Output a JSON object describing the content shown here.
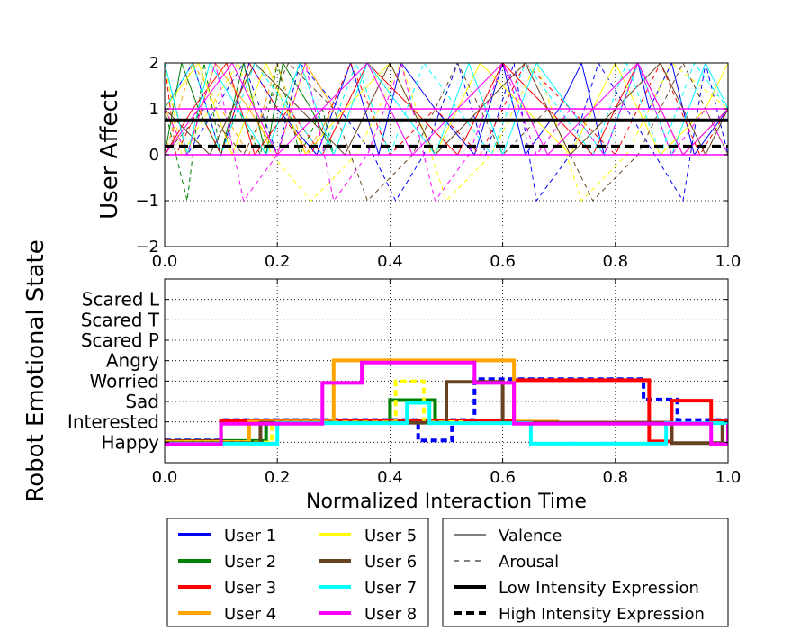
{
  "figure": {
    "top_ylabel": "User Affect",
    "bottom_ylabel": "Robot Emotional State",
    "xlabel": "Normalized Interaction Time"
  },
  "colors": {
    "User 1": "#0000ff",
    "User 2": "#008000",
    "User 3": "#ff0000",
    "User 4": "#ffa500",
    "User 5": "#ffff00",
    "User 6": "#654321",
    "User 7": "#00ffff",
    "User 8": "#ff00ff"
  },
  "chart_data": [
    {
      "type": "line",
      "panel": "user-affect",
      "ylabel": "User Affect",
      "xlim": [
        0.0,
        1.0
      ],
      "ylim": [
        -2,
        2
      ],
      "xticks": [
        "0.0",
        "0.2",
        "0.4",
        "0.6",
        "0.8",
        "1.0"
      ],
      "yticks": [
        "2",
        "1",
        "0",
        "−1",
        "−2"
      ],
      "grid": true,
      "reference_lines": [
        {
          "name": "Low Intensity Expression",
          "y": 0.75,
          "style": "solid"
        },
        {
          "name": "High Intensity Expression",
          "y": 0.18,
          "style": "dashed"
        }
      ],
      "threshold_lines": [
        {
          "y": 1.0,
          "color": "#ff00ff"
        },
        {
          "y": 0.0,
          "color": "#ff00ff"
        }
      ],
      "series": [
        {
          "name": "User 1",
          "valence": {
            "x": [
              0.0,
              0.05,
              0.1,
              0.15,
              0.2,
              0.27,
              0.33,
              0.38,
              0.42,
              0.48,
              0.55,
              0.6,
              0.64,
              0.7,
              0.74,
              0.78,
              0.84,
              0.86,
              0.9,
              0.94,
              1.0
            ],
            "y": [
              1,
              2,
              0,
              2,
              1,
              0,
              2,
              0,
              2,
              1,
              0,
              2,
              0,
              1,
              2,
              0,
              2,
              1,
              2,
              0,
              1
            ]
          },
          "arousal": {
            "x": [
              0.0,
              0.04,
              0.09,
              0.14,
              0.2,
              0.24,
              0.31,
              0.37,
              0.41,
              0.46,
              0.52,
              0.57,
              0.62,
              0.66,
              0.72,
              0.77,
              0.82,
              0.87,
              0.92,
              0.96,
              1.0
            ],
            "y": [
              2,
              0,
              1,
              2,
              0,
              2,
              1,
              0,
              -1,
              0,
              2,
              0,
              2,
              -1,
              0,
              2,
              1,
              0,
              -1,
              2,
              0
            ]
          }
        },
        {
          "name": "User 2",
          "valence": {
            "x": [
              0.0,
              0.03,
              0.06,
              0.1,
              0.14,
              0.18,
              0.21,
              0.26,
              0.3
            ],
            "y": [
              0,
              2,
              1,
              0,
              2,
              0,
              2,
              1,
              0
            ]
          },
          "arousal": {
            "x": [
              0.0,
              0.02,
              0.04,
              0.07,
              0.1,
              0.13,
              0.17,
              0.2,
              0.24,
              0.28,
              0.3
            ],
            "y": [
              1,
              0,
              -1,
              2,
              0,
              1,
              0,
              2,
              0,
              1,
              0
            ]
          }
        },
        {
          "name": "User 3",
          "valence": {
            "x": [
              0.0,
              0.05,
              0.11,
              0.16,
              0.22,
              0.28,
              0.36,
              0.44,
              0.52,
              0.6,
              0.68,
              0.76,
              0.84,
              0.92,
              1.0
            ],
            "y": [
              0,
              1,
              2,
              0,
              1,
              0,
              2,
              1,
              0,
              2,
              1,
              0,
              2,
              0,
              1
            ]
          },
          "arousal": {
            "x": [
              0.0,
              0.02,
              0.06,
              0.1,
              0.15,
              0.2,
              0.26,
              0.33,
              0.4,
              0.48,
              0.56,
              0.64,
              0.72,
              0.8,
              0.88,
              0.95,
              1.0
            ],
            "y": [
              2,
              0,
              1,
              0,
              2,
              1,
              0,
              2,
              0,
              1,
              0,
              2,
              1,
              0,
              2,
              0,
              1
            ]
          }
        },
        {
          "name": "User 4",
          "valence": {
            "x": [
              0.0,
              0.04,
              0.09,
              0.15,
              0.2,
              0.25,
              0.3
            ],
            "y": [
              1,
              0,
              2,
              1,
              0,
              2,
              1
            ]
          },
          "arousal": {
            "x": [
              0.0,
              0.05,
              0.1,
              0.15,
              0.2,
              0.25,
              0.3
            ],
            "y": [
              0,
              2,
              1,
              0,
              2,
              0,
              1
            ]
          }
        },
        {
          "name": "User 5",
          "valence": {
            "x": [
              0.0,
              0.06,
              0.12,
              0.18,
              0.25,
              0.32,
              0.4,
              0.48,
              0.56,
              0.64,
              0.72,
              0.8,
              0.88,
              0.96,
              1.0
            ],
            "y": [
              1,
              2,
              0,
              2,
              0,
              1,
              2,
              0,
              2,
              1,
              0,
              2,
              0,
              1,
              2
            ]
          },
          "arousal": {
            "x": [
              0.0,
              0.03,
              0.08,
              0.13,
              0.19,
              0.26,
              0.34,
              0.42,
              0.5,
              0.58,
              0.66,
              0.74,
              0.82,
              0.9,
              1.0
            ],
            "y": [
              2,
              0,
              1,
              2,
              0,
              -1,
              0,
              2,
              -1,
              0,
              2,
              -1,
              0,
              2,
              1
            ]
          }
        },
        {
          "name": "User 6",
          "valence": {
            "x": [
              0.0,
              0.08,
              0.16,
              0.24,
              0.32,
              0.4,
              0.48,
              0.56,
              0.64,
              0.72,
              0.8,
              0.88,
              0.96,
              1.0
            ],
            "y": [
              1,
              0,
              2,
              1,
              0,
              2,
              0,
              1,
              2,
              0,
              1,
              2,
              0,
              1
            ]
          },
          "arousal": {
            "x": [
              0.0,
              0.07,
              0.14,
              0.22,
              0.3,
              0.36,
              0.44,
              0.52,
              0.6,
              0.68,
              0.76,
              0.84,
              0.92,
              1.0
            ],
            "y": [
              0,
              1,
              0,
              2,
              1,
              -1,
              0,
              2,
              0,
              1,
              -1,
              0,
              2,
              0
            ]
          }
        },
        {
          "name": "User 7",
          "valence": {
            "x": [
              0.0,
              0.04,
              0.08,
              0.13,
              0.18,
              0.24,
              0.3,
              0.36,
              0.42,
              0.48,
              0.54,
              0.6,
              0.66,
              0.72,
              0.78,
              0.84,
              0.9,
              0.96,
              1.0
            ],
            "y": [
              2,
              0,
              2,
              1,
              0,
              2,
              0,
              2,
              1,
              0,
              2,
              0,
              2,
              1,
              0,
              2,
              0,
              2,
              1
            ]
          },
          "arousal": {
            "x": [
              0.0,
              0.05,
              0.1,
              0.16,
              0.22,
              0.28,
              0.34,
              0.4,
              0.46,
              0.52,
              0.58,
              0.64,
              0.7,
              0.76,
              0.82,
              0.88,
              0.94,
              1.0
            ],
            "y": [
              1,
              2,
              0,
              2,
              1,
              0,
              2,
              0,
              2,
              1,
              0,
              2,
              1,
              0,
              2,
              0,
              2,
              1
            ]
          }
        },
        {
          "name": "User 8",
          "valence": {
            "x": [
              0.0,
              0.06,
              0.12,
              0.2,
              0.28,
              0.36,
              0.44,
              0.52,
              0.6,
              0.68,
              0.76,
              0.84,
              0.92,
              1.0
            ],
            "y": [
              0,
              1,
              2,
              0,
              1,
              2,
              0,
              1,
              2,
              0,
              1,
              2,
              0,
              1
            ]
          },
          "arousal": {
            "x": [
              0.0,
              0.04,
              0.09,
              0.14,
              0.2,
              0.25,
              0.3,
              0.36,
              0.42,
              0.48,
              0.54,
              0.6,
              0.66,
              0.72,
              0.78,
              0.84,
              0.9,
              0.96,
              1.0
            ],
            "y": [
              1,
              0,
              2,
              -1,
              0,
              2,
              -1,
              0,
              2,
              -1,
              0,
              2,
              0,
              1,
              0,
              2,
              0,
              1,
              0
            ]
          }
        }
      ]
    },
    {
      "type": "line",
      "panel": "robot-emotional-state",
      "step": true,
      "ylabel": "Robot Emotional State",
      "xlabel": "Normalized Interaction Time",
      "xlim": [
        0.0,
        1.0
      ],
      "xticks": [
        "0.0",
        "0.2",
        "0.4",
        "0.6",
        "0.8",
        "1.0"
      ],
      "categories": [
        "Happy",
        "Interested",
        "Sad",
        "Worried",
        "Angry",
        "Scared P",
        "Scared T",
        "Scared L"
      ],
      "grid": true,
      "series": [
        {
          "name": "User 1",
          "x": [
            0.0,
            0.1,
            0.45,
            0.51,
            0.55,
            0.72,
            0.85,
            0.91,
            1.0
          ],
          "y": [
            "Happy",
            "Interested",
            "Happy",
            "Interested",
            "Worried",
            "Worried",
            "Sad",
            "Interested",
            "Interested"
          ]
        },
        {
          "name": "User 2",
          "x": [
            0.0,
            0.18,
            0.4,
            0.48,
            0.55
          ],
          "y": [
            "Happy",
            "Interested",
            "Sad",
            "Interested",
            "Interested"
          ]
        },
        {
          "name": "User 3",
          "x": [
            0.0,
            0.1,
            0.62,
            0.86,
            0.9,
            0.97,
            1.0
          ],
          "y": [
            "Happy",
            "Interested",
            "Worried",
            "Happy",
            "Sad",
            "Interested",
            "Interested"
          ]
        },
        {
          "name": "User 4",
          "x": [
            0.0,
            0.15,
            0.28,
            0.3,
            0.54,
            0.62,
            0.7
          ],
          "y": [
            "Happy",
            "Interested",
            "Interested",
            "Angry",
            "Angry",
            "Interested",
            "Interested"
          ]
        },
        {
          "name": "User 5",
          "x": [
            0.0,
            0.19,
            0.41,
            0.46,
            0.5,
            0.53
          ],
          "y": [
            "Happy",
            "Interested",
            "Worried",
            "Interested",
            "Interested",
            "Interested"
          ]
        },
        {
          "name": "User 6",
          "x": [
            0.0,
            0.17,
            0.42,
            0.5,
            0.6,
            0.9,
            0.99,
            1.0
          ],
          "y": [
            "Happy",
            "Interested",
            "Interested",
            "Worried",
            "Interested",
            "Happy",
            "Interested",
            "Interested"
          ]
        },
        {
          "name": "User 7",
          "x": [
            0.0,
            0.2,
            0.43,
            0.47,
            0.57,
            0.65,
            0.89,
            1.0
          ],
          "y": [
            "Happy",
            "Interested",
            "Sad",
            "Interested",
            "Interested",
            "Happy",
            "Interested",
            "Interested"
          ]
        },
        {
          "name": "User 8",
          "x": [
            0.0,
            0.1,
            0.28,
            0.35,
            0.55,
            0.62,
            0.89,
            0.97,
            1.0
          ],
          "y": [
            "Happy",
            "Interested",
            "Worried",
            "Angry",
            "Worried",
            "Interested",
            "Interested",
            "Happy",
            "Interested"
          ]
        }
      ]
    }
  ],
  "legend_users": {
    "entries": [
      "User 1",
      "User 2",
      "User 3",
      "User 4",
      "User 5",
      "User 6",
      "User 7",
      "User 8"
    ]
  },
  "legend_styles": {
    "entries": [
      {
        "label": "Valence",
        "style": "solid-thin"
      },
      {
        "label": "Arousal",
        "style": "dashed-thin"
      },
      {
        "label": "Low Intensity Expression",
        "style": "solid-thick"
      },
      {
        "label": "High Intensity Expression",
        "style": "dashed-thick"
      }
    ]
  }
}
